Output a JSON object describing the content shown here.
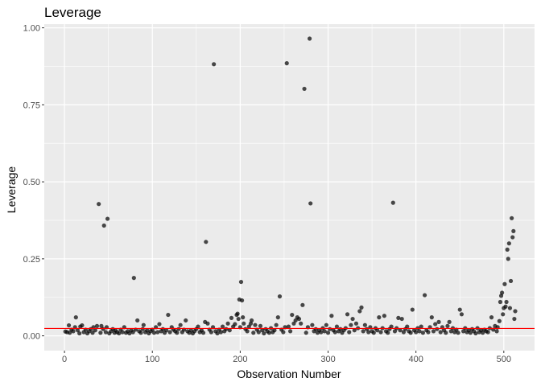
{
  "chart_data": {
    "type": "scatter",
    "title": "Leverage",
    "xlabel": "Observation Number",
    "ylabel": "Leverage",
    "xlim": [
      -23,
      535
    ],
    "ylim": [
      -0.048,
      1.012
    ],
    "x_ticks": [
      0,
      100,
      200,
      300,
      400,
      500
    ],
    "x_tick_labels": [
      "0",
      "100",
      "200",
      "300",
      "400",
      "500"
    ],
    "y_ticks": [
      0.0,
      0.25,
      0.5,
      0.75,
      1.0
    ],
    "y_tick_labels": [
      "0.00",
      "0.25",
      "0.50",
      "0.75",
      "1.00"
    ],
    "grid": true,
    "point_color": "#000000",
    "point_alpha": 0.7,
    "panel_background": "#ebebeb",
    "grid_color": "#ffffff",
    "reference_line": {
      "y": 0.024,
      "color": "#ff0000"
    },
    "points": [
      [
        1,
        0.014
      ],
      [
        3,
        0.012
      ],
      [
        5,
        0.034
      ],
      [
        6,
        0.01
      ],
      [
        8,
        0.02
      ],
      [
        10,
        0.015
      ],
      [
        12,
        0.028
      ],
      [
        13,
        0.06
      ],
      [
        15,
        0.018
      ],
      [
        17,
        0.008
      ],
      [
        18,
        0.03
      ],
      [
        20,
        0.034
      ],
      [
        22,
        0.012
      ],
      [
        24,
        0.02
      ],
      [
        26,
        0.008
      ],
      [
        28,
        0.015
      ],
      [
        30,
        0.022
      ],
      [
        32,
        0.01
      ],
      [
        33,
        0.028
      ],
      [
        35,
        0.018
      ],
      [
        37,
        0.032
      ],
      [
        39,
        0.428
      ],
      [
        41,
        0.01
      ],
      [
        42,
        0.032
      ],
      [
        44,
        0.022
      ],
      [
        45,
        0.358
      ],
      [
        47,
        0.012
      ],
      [
        48,
        0.028
      ],
      [
        49,
        0.38
      ],
      [
        51,
        0.008
      ],
      [
        53,
        0.015
      ],
      [
        55,
        0.022
      ],
      [
        57,
        0.01
      ],
      [
        58,
        0.018
      ],
      [
        60,
        0.012
      ],
      [
        62,
        0.008
      ],
      [
        64,
        0.02
      ],
      [
        66,
        0.012
      ],
      [
        68,
        0.028
      ],
      [
        70,
        0.01
      ],
      [
        72,
        0.015
      ],
      [
        74,
        0.008
      ],
      [
        76,
        0.018
      ],
      [
        78,
        0.012
      ],
      [
        79,
        0.188
      ],
      [
        81,
        0.02
      ],
      [
        83,
        0.05
      ],
      [
        85,
        0.015
      ],
      [
        87,
        0.01
      ],
      [
        89,
        0.022
      ],
      [
        90,
        0.035
      ],
      [
        92,
        0.012
      ],
      [
        94,
        0.018
      ],
      [
        96,
        0.008
      ],
      [
        98,
        0.015
      ],
      [
        100,
        0.02
      ],
      [
        102,
        0.01
      ],
      [
        104,
        0.028
      ],
      [
        106,
        0.012
      ],
      [
        108,
        0.038
      ],
      [
        110,
        0.015
      ],
      [
        112,
        0.022
      ],
      [
        114,
        0.01
      ],
      [
        116,
        0.018
      ],
      [
        118,
        0.068
      ],
      [
        120,
        0.012
      ],
      [
        122,
        0.028
      ],
      [
        124,
        0.02
      ],
      [
        126,
        0.015
      ],
      [
        128,
        0.01
      ],
      [
        130,
        0.022
      ],
      [
        132,
        0.035
      ],
      [
        134,
        0.012
      ],
      [
        136,
        0.02
      ],
      [
        138,
        0.05
      ],
      [
        140,
        0.015
      ],
      [
        142,
        0.01
      ],
      [
        144,
        0.018
      ],
      [
        146,
        0.008
      ],
      [
        148,
        0.015
      ],
      [
        150,
        0.022
      ],
      [
        152,
        0.03
      ],
      [
        154,
        0.012
      ],
      [
        156,
        0.018
      ],
      [
        158,
        0.01
      ],
      [
        160,
        0.045
      ],
      [
        161,
        0.305
      ],
      [
        163,
        0.04
      ],
      [
        165,
        0.02
      ],
      [
        167,
        0.012
      ],
      [
        169,
        0.028
      ],
      [
        170,
        0.882
      ],
      [
        172,
        0.015
      ],
      [
        174,
        0.008
      ],
      [
        176,
        0.02
      ],
      [
        178,
        0.012
      ],
      [
        180,
        0.03
      ],
      [
        182,
        0.015
      ],
      [
        184,
        0.022
      ],
      [
        186,
        0.04
      ],
      [
        188,
        0.018
      ],
      [
        190,
        0.058
      ],
      [
        192,
        0.03
      ],
      [
        194,
        0.038
      ],
      [
        196,
        0.068
      ],
      [
        197,
        0.072
      ],
      [
        198,
        0.055
      ],
      [
        199,
        0.118
      ],
      [
        200,
        0.028
      ],
      [
        201,
        0.175
      ],
      [
        202,
        0.115
      ],
      [
        203,
        0.06
      ],
      [
        204,
        0.04
      ],
      [
        206,
        0.022
      ],
      [
        208,
        0.015
      ],
      [
        210,
        0.03
      ],
      [
        212,
        0.04
      ],
      [
        213,
        0.05
      ],
      [
        215,
        0.01
      ],
      [
        217,
        0.035
      ],
      [
        219,
        0.02
      ],
      [
        221,
        0.012
      ],
      [
        223,
        0.032
      ],
      [
        225,
        0.018
      ],
      [
        227,
        0.008
      ],
      [
        229,
        0.022
      ],
      [
        231,
        0.015
      ],
      [
        233,
        0.01
      ],
      [
        235,
        0.025
      ],
      [
        237,
        0.012
      ],
      [
        239,
        0.018
      ],
      [
        241,
        0.035
      ],
      [
        243,
        0.06
      ],
      [
        245,
        0.128
      ],
      [
        247,
        0.02
      ],
      [
        249,
        0.012
      ],
      [
        251,
        0.028
      ],
      [
        253,
        0.885
      ],
      [
        255,
        0.03
      ],
      [
        257,
        0.015
      ],
      [
        259,
        0.068
      ],
      [
        261,
        0.04
      ],
      [
        263,
        0.05
      ],
      [
        265,
        0.06
      ],
      [
        267,
        0.055
      ],
      [
        269,
        0.04
      ],
      [
        271,
        0.1
      ],
      [
        273,
        0.802
      ],
      [
        275,
        0.01
      ],
      [
        277,
        0.028
      ],
      [
        279,
        0.965
      ],
      [
        280,
        0.43
      ],
      [
        282,
        0.035
      ],
      [
        284,
        0.015
      ],
      [
        286,
        0.022
      ],
      [
        288,
        0.01
      ],
      [
        290,
        0.018
      ],
      [
        292,
        0.012
      ],
      [
        294,
        0.025
      ],
      [
        296,
        0.015
      ],
      [
        298,
        0.035
      ],
      [
        300,
        0.01
      ],
      [
        302,
        0.022
      ],
      [
        304,
        0.065
      ],
      [
        306,
        0.018
      ],
      [
        308,
        0.012
      ],
      [
        310,
        0.03
      ],
      [
        312,
        0.015
      ],
      [
        314,
        0.022
      ],
      [
        316,
        0.01
      ],
      [
        318,
        0.018
      ],
      [
        320,
        0.025
      ],
      [
        322,
        0.07
      ],
      [
        324,
        0.012
      ],
      [
        326,
        0.035
      ],
      [
        328,
        0.055
      ],
      [
        330,
        0.018
      ],
      [
        332,
        0.04
      ],
      [
        334,
        0.025
      ],
      [
        336,
        0.08
      ],
      [
        338,
        0.092
      ],
      [
        340,
        0.015
      ],
      [
        342,
        0.035
      ],
      [
        344,
        0.022
      ],
      [
        346,
        0.012
      ],
      [
        348,
        0.028
      ],
      [
        350,
        0.015
      ],
      [
        352,
        0.01
      ],
      [
        354,
        0.025
      ],
      [
        356,
        0.018
      ],
      [
        358,
        0.06
      ],
      [
        360,
        0.012
      ],
      [
        362,
        0.025
      ],
      [
        364,
        0.065
      ],
      [
        366,
        0.015
      ],
      [
        368,
        0.01
      ],
      [
        370,
        0.022
      ],
      [
        372,
        0.03
      ],
      [
        374,
        0.432
      ],
      [
        376,
        0.015
      ],
      [
        378,
        0.025
      ],
      [
        380,
        0.058
      ],
      [
        382,
        0.018
      ],
      [
        384,
        0.055
      ],
      [
        386,
        0.012
      ],
      [
        388,
        0.022
      ],
      [
        390,
        0.03
      ],
      [
        392,
        0.015
      ],
      [
        394,
        0.01
      ],
      [
        396,
        0.085
      ],
      [
        398,
        0.018
      ],
      [
        400,
        0.012
      ],
      [
        402,
        0.025
      ],
      [
        404,
        0.015
      ],
      [
        406,
        0.03
      ],
      [
        408,
        0.01
      ],
      [
        410,
        0.132
      ],
      [
        412,
        0.018
      ],
      [
        414,
        0.012
      ],
      [
        416,
        0.028
      ],
      [
        418,
        0.06
      ],
      [
        420,
        0.015
      ],
      [
        422,
        0.038
      ],
      [
        424,
        0.022
      ],
      [
        426,
        0.045
      ],
      [
        428,
        0.012
      ],
      [
        430,
        0.028
      ],
      [
        432,
        0.018
      ],
      [
        434,
        0.01
      ],
      [
        436,
        0.032
      ],
      [
        438,
        0.045
      ],
      [
        440,
        0.015
      ],
      [
        442,
        0.025
      ],
      [
        444,
        0.012
      ],
      [
        446,
        0.02
      ],
      [
        448,
        0.01
      ],
      [
        450,
        0.085
      ],
      [
        452,
        0.07
      ],
      [
        454,
        0.015
      ],
      [
        456,
        0.025
      ],
      [
        458,
        0.012
      ],
      [
        460,
        0.018
      ],
      [
        462,
        0.01
      ],
      [
        464,
        0.022
      ],
      [
        466,
        0.015
      ],
      [
        468,
        0.008
      ],
      [
        470,
        0.025
      ],
      [
        472,
        0.012
      ],
      [
        474,
        0.018
      ],
      [
        476,
        0.01
      ],
      [
        478,
        0.02
      ],
      [
        480,
        0.015
      ],
      [
        482,
        0.012
      ],
      [
        484,
        0.025
      ],
      [
        486,
        0.06
      ],
      [
        488,
        0.02
      ],
      [
        490,
        0.032
      ],
      [
        492,
        0.015
      ],
      [
        493,
        0.028
      ],
      [
        495,
        0.048
      ],
      [
        496,
        0.11
      ],
      [
        497,
        0.13
      ],
      [
        498,
        0.14
      ],
      [
        499,
        0.07
      ],
      [
        500,
        0.09
      ],
      [
        501,
        0.168
      ],
      [
        502,
        0.095
      ],
      [
        503,
        0.11
      ],
      [
        504,
        0.28
      ],
      [
        505,
        0.25
      ],
      [
        506,
        0.3
      ],
      [
        507,
        0.09
      ],
      [
        508,
        0.178
      ],
      [
        509,
        0.382
      ],
      [
        510,
        0.32
      ],
      [
        511,
        0.34
      ],
      [
        512,
        0.055
      ],
      [
        513,
        0.08
      ]
    ]
  }
}
